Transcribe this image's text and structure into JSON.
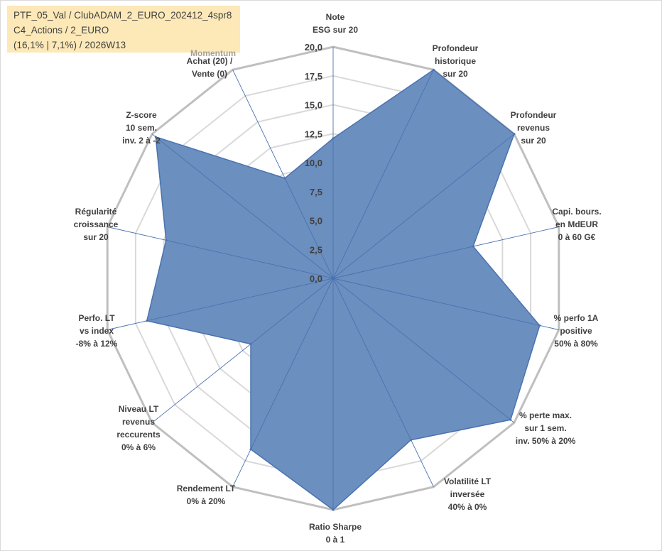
{
  "info": {
    "line1": "PTF_05_Val / ClubADAM_2_EURO_202412_4spr8",
    "line2": "C4_Actions / 2_EURO",
    "line3": "(16,1% | 7,1%) / 2026W13",
    "momentum": "Momentum"
  },
  "chart_data": {
    "type": "radar",
    "rmin": 0,
    "rmax": 20,
    "tick_step": 2.5,
    "tick_labels": [
      "0,0",
      "2,5",
      "5,0",
      "7,5",
      "10,0",
      "12,5",
      "15,0",
      "17,5",
      "20,0"
    ],
    "grid": true,
    "fill_color": "#6b8fbf",
    "line_color": "#4a72b0",
    "categories": [
      {
        "lines": [
          "Note",
          "ESG sur 20"
        ],
        "value": 12.1
      },
      {
        "lines": [
          "Profondeur",
          "historique",
          "sur 20"
        ],
        "value": 20
      },
      {
        "lines": [
          "Profondeur",
          "revenus",
          "sur 20"
        ],
        "value": 20
      },
      {
        "lines": [
          "Capi. bours.",
          "en MdEUR",
          "0 à 60 G€"
        ],
        "value": 12.4
      },
      {
        "lines": [
          "% perfo 1A",
          "positive",
          "50% à 80%"
        ],
        "value": 18.3
      },
      {
        "lines": [
          "% perte max.",
          "sur 1 sem.",
          "inv. 50% à 20%"
        ],
        "value": 19.6
      },
      {
        "lines": [
          "Volatilité LT",
          "inversée",
          "40% à 0%"
        ],
        "value": 15.5
      },
      {
        "lines": [
          "Ratio Sharpe",
          "0 à 1"
        ],
        "value": 20
      },
      {
        "lines": [
          "Rendement LT",
          "0% à 20%"
        ],
        "value": 16.4
      },
      {
        "lines": [
          "Niveau LT",
          "revenus",
          "reccurents",
          "0% à 6%"
        ],
        "value": 9.1
      },
      {
        "lines": [
          "Perfo. LT",
          "vs index",
          "-8% à 12%"
        ],
        "value": 16.5
      },
      {
        "lines": [
          "Régularité",
          "croissance",
          "sur 20"
        ],
        "value": 14.8
      },
      {
        "lines": [
          "Z-score",
          "10 sem.",
          "inv. 2 à -2"
        ],
        "value": 19.6
      },
      {
        "lines": [
          "Achat (20) /",
          "Vente (0)"
        ],
        "value": 9.6
      }
    ]
  }
}
